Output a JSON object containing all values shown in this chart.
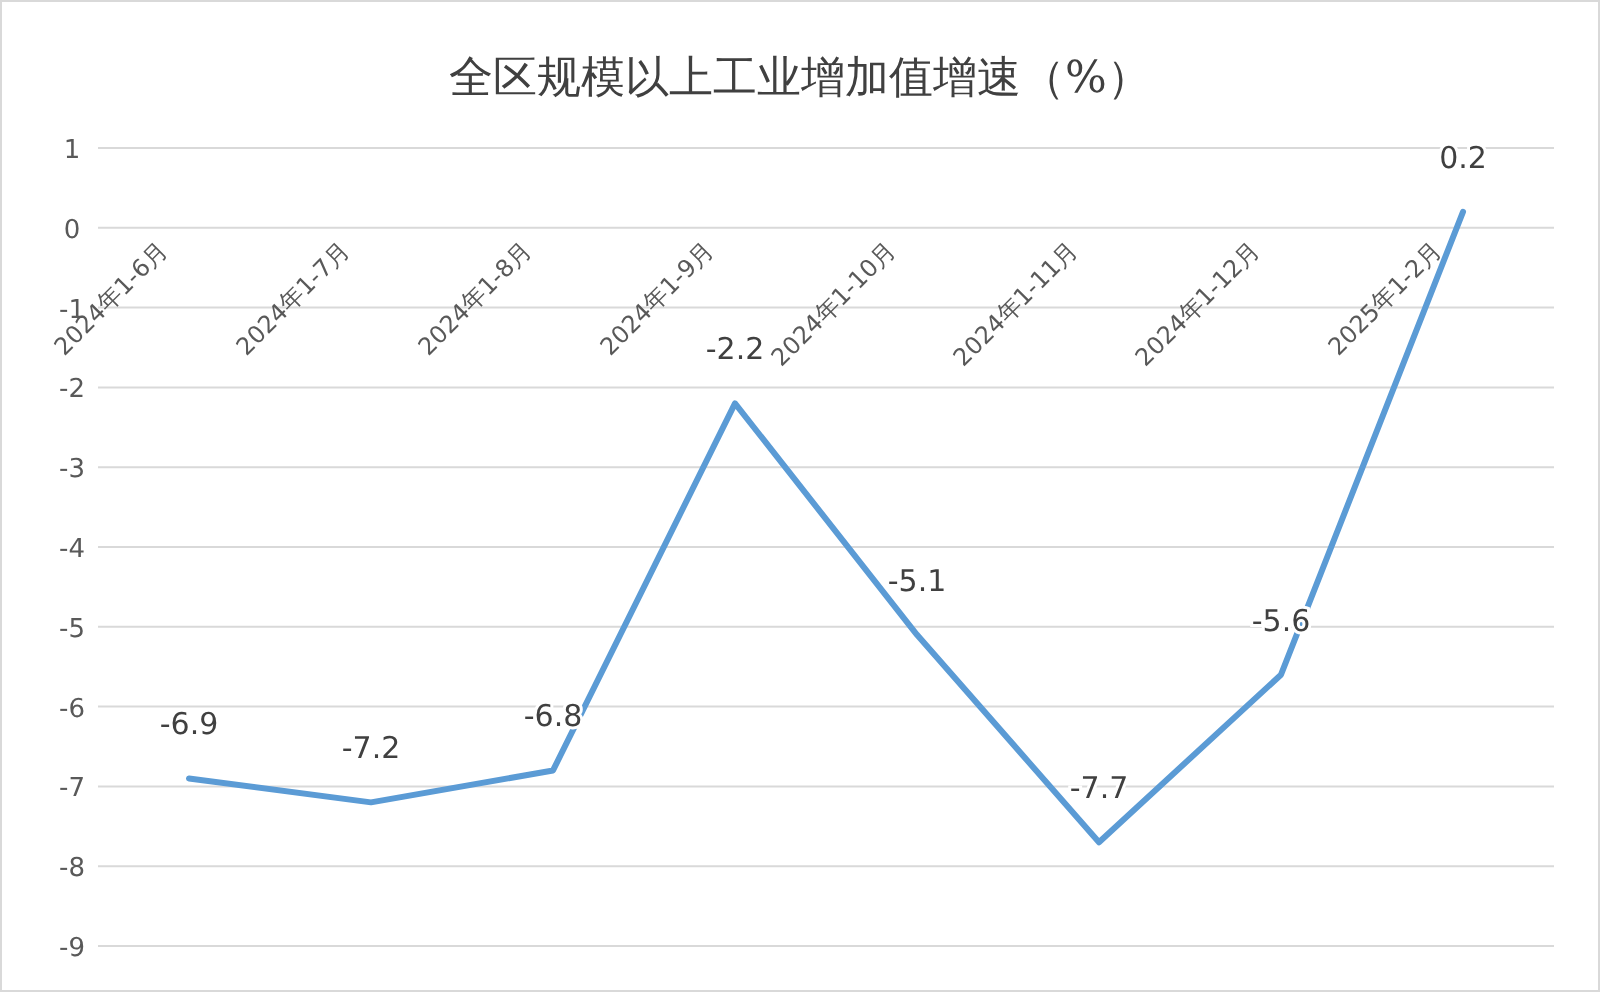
{
  "chart_data": {
    "type": "line",
    "title": "全区规模以上工业增加值增速（%）",
    "categories": [
      "2024年1-6月",
      "2024年1-7月",
      "2024年1-8月",
      "2024年1-9月",
      "2024年1-10月",
      "2024年1-11月",
      "2024年1-12月",
      "2025年1-2月"
    ],
    "values": [
      -6.9,
      -7.2,
      -6.8,
      -2.2,
      -5.1,
      -7.7,
      -5.6,
      0.2
    ],
    "color": "#5b9bd5",
    "ylim": [
      -9,
      1
    ],
    "yticks": [
      -9,
      -8,
      -7,
      -6,
      -5,
      -4,
      -3,
      -2,
      -1,
      0,
      1
    ],
    "grid": "y",
    "data_labels": true
  }
}
